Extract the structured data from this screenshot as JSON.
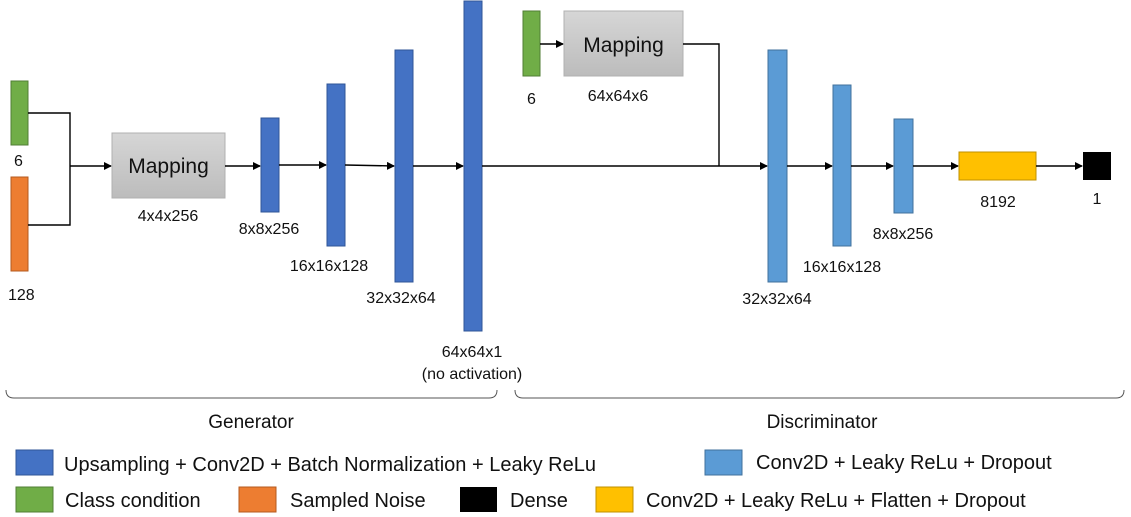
{
  "colors": {
    "generator_block": "#4472C4",
    "discriminator_block": "#5B9BD5",
    "class_condition": "#70AD47",
    "sampled_noise": "#ED7D31",
    "dense": "#000000",
    "flatten": "#FFC000",
    "mapping": "#C9C9C9"
  },
  "generator": {
    "section_label": "Generator",
    "class_input_label": "6",
    "noise_input_label": "128",
    "mapping_title": "Mapping",
    "mapping_output": "4x4x256",
    "layers": [
      "8x8x256",
      "16x16x128",
      "32x32x64"
    ],
    "output_label_line1": "64x64x1",
    "output_label_line2": "(no activation)"
  },
  "discriminator": {
    "section_label": "Discriminator",
    "class_input_label": "6",
    "mapping_title": "Mapping",
    "mapping_output": "64x64x6",
    "layers": [
      "32x32x64",
      "16x16x128",
      "8x8x256"
    ],
    "flatten_label": "8192",
    "dense_label": "1"
  },
  "legend": {
    "upsampling": "Upsampling + Conv2D + Batch Normalization + Leaky ReLu",
    "conv_leaky_dropout": "Conv2D + Leaky ReLu + Dropout",
    "class_condition": "Class condition",
    "sampled_noise": "Sampled Noise",
    "dense": "Dense",
    "conv_flatten": "Conv2D + Leaky ReLu + Flatten + Dropout"
  }
}
